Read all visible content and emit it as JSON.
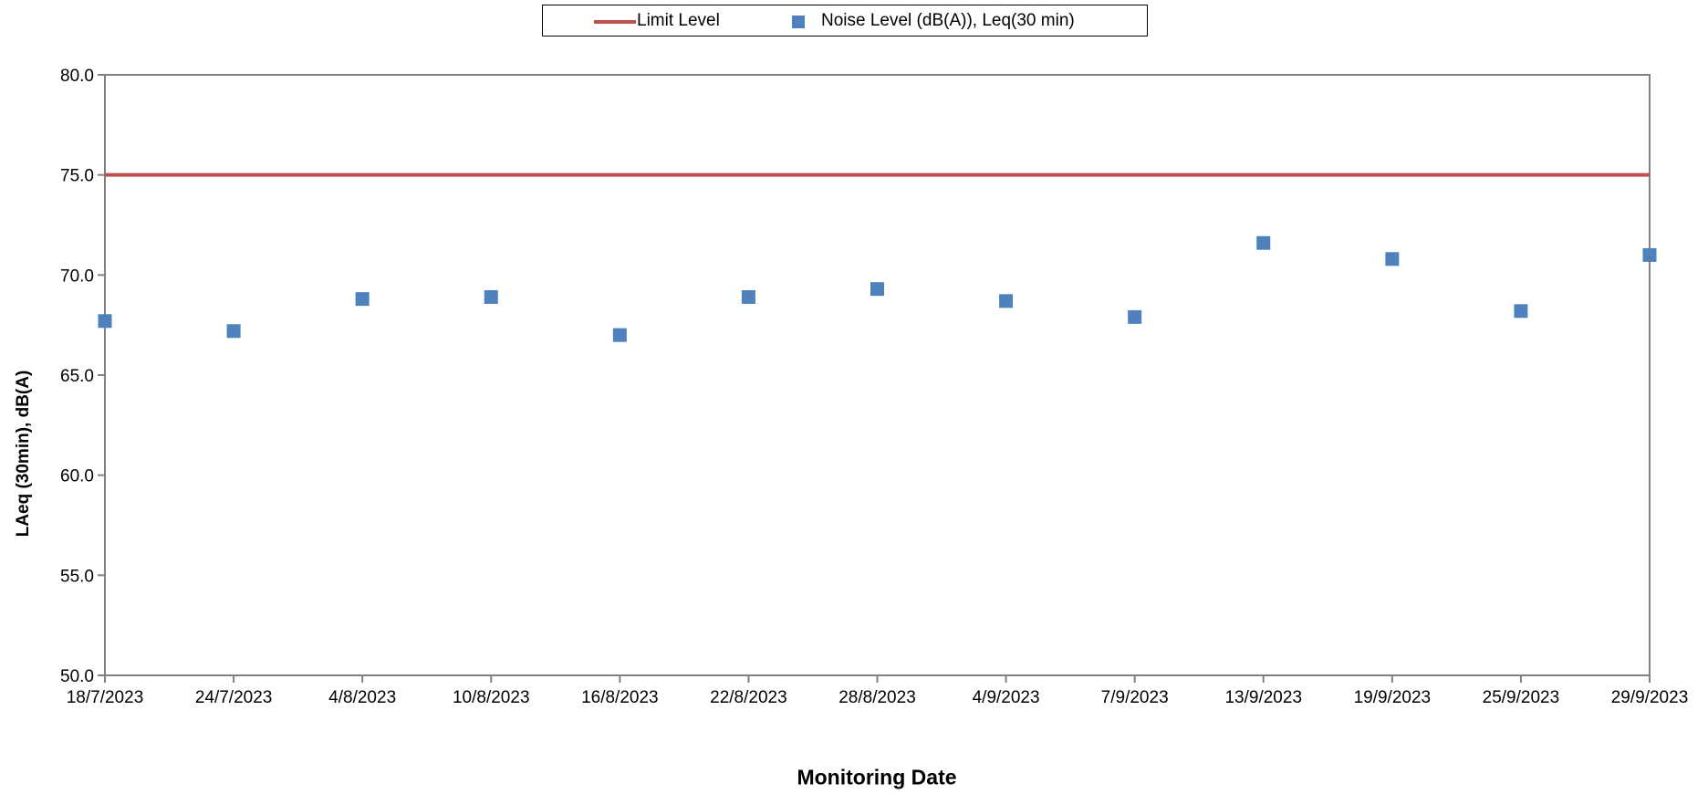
{
  "chart_data": {
    "type": "scatter",
    "xlabel": "Monitoring Date",
    "ylabel": "LAeq (30min), dB(A)",
    "ylim": [
      50.0,
      80.0
    ],
    "yticks": [
      "50.0",
      "55.0",
      "60.0",
      "65.0",
      "70.0",
      "75.0",
      "80.0"
    ],
    "x_tick_labels": [
      "18/7/2023",
      "24/7/2023",
      "4/8/2023",
      "10/8/2023",
      "16/8/2023",
      "22/8/2023",
      "28/8/2023",
      "4/9/2023",
      "7/9/2023",
      "13/9/2023",
      "19/9/2023",
      "25/9/2023",
      "29/9/2023"
    ],
    "grid": false,
    "legend_position": "top-center",
    "series": [
      {
        "name": "Limit Level",
        "kind": "line",
        "color": "#c0504d",
        "x": [
          "18/7/2023",
          "24/7/2023",
          "4/8/2023",
          "10/8/2023",
          "16/8/2023",
          "22/8/2023",
          "28/8/2023",
          "4/9/2023",
          "7/9/2023",
          "13/9/2023",
          "19/9/2023",
          "25/9/2023",
          "29/9/2023"
        ],
        "values": [
          75.0,
          75.0,
          75.0,
          75.0,
          75.0,
          75.0,
          75.0,
          75.0,
          75.0,
          75.0,
          75.0,
          75.0,
          75.0
        ]
      },
      {
        "name": "Noise Level (dB(A)), Leq(30 min)",
        "kind": "marker",
        "marker": "square",
        "color": "#4f81bd",
        "x": [
          "18/7/2023",
          "24/7/2023",
          "4/8/2023",
          "10/8/2023",
          "16/8/2023",
          "22/8/2023",
          "28/8/2023",
          "4/9/2023",
          "7/9/2023",
          "13/9/2023",
          "19/9/2023",
          "25/9/2023",
          "29/9/2023"
        ],
        "values": [
          67.7,
          67.2,
          68.8,
          68.9,
          67.0,
          68.9,
          69.3,
          68.7,
          67.9,
          71.6,
          70.8,
          68.2,
          71.0
        ]
      }
    ]
  }
}
